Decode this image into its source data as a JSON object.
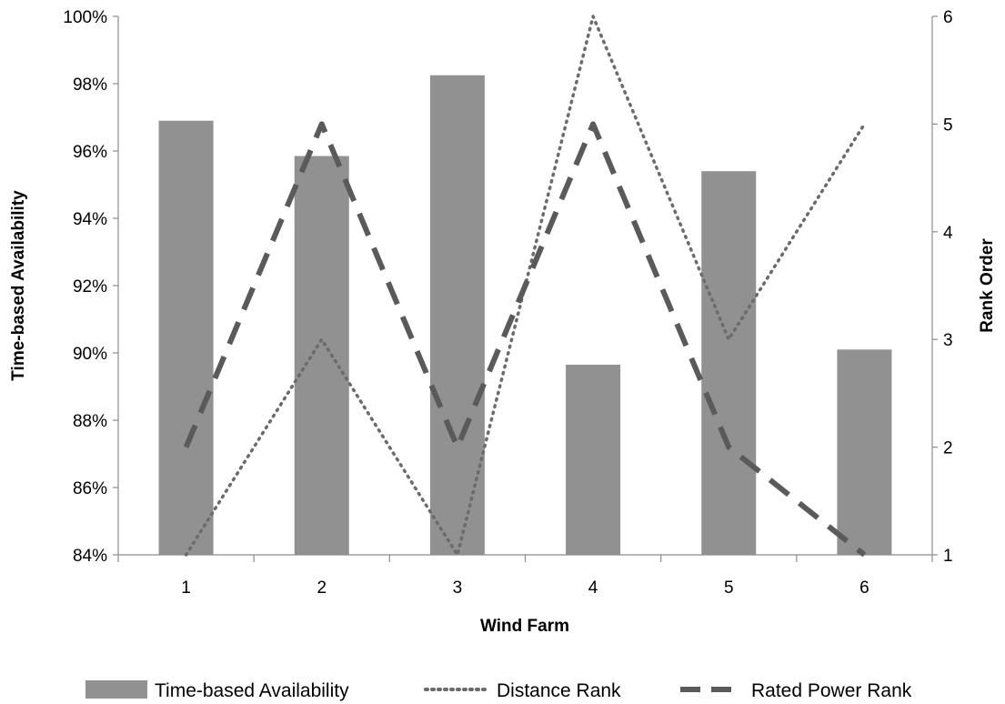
{
  "chart_data": {
    "type": "bar",
    "categories": [
      "1",
      "2",
      "3",
      "4",
      "5",
      "6"
    ],
    "x_tick_labels": [
      "1",
      "2",
      "3",
      "4",
      "5",
      "6"
    ],
    "xlabel": "Wind Farm",
    "ylabel": "Time-based Availability",
    "y2label": "Rank Order",
    "ylim": [
      0.84,
      1.0
    ],
    "y_ticks": [
      0.84,
      0.86,
      0.88,
      0.9,
      0.92,
      0.94,
      0.96,
      0.98,
      1.0
    ],
    "y_tick_labels": [
      "84%",
      "86%",
      "88%",
      "90%",
      "92%",
      "94%",
      "96%",
      "98%",
      "100%"
    ],
    "y2lim": [
      1,
      6
    ],
    "y2_ticks": [
      1,
      2,
      3,
      4,
      5,
      6
    ],
    "y2_tick_labels": [
      "1",
      "2",
      "3",
      "4",
      "5",
      "6"
    ],
    "grid": false,
    "legend_position": "bottom",
    "series": [
      {
        "name": "Time-based Availability",
        "kind": "bar",
        "axis": "left",
        "color": "#919191",
        "values": [
          0.969,
          0.9585,
          0.9825,
          0.8965,
          0.954,
          0.901
        ]
      },
      {
        "name": "Distance Rank",
        "kind": "line",
        "style": "dotted",
        "axis": "right",
        "color": "#6b6b6b",
        "values": [
          1,
          3,
          1,
          6,
          3,
          5
        ]
      },
      {
        "name": "Rated Power Rank",
        "kind": "line",
        "style": "dashed",
        "axis": "right",
        "color": "#5a5a5a",
        "values": [
          2,
          5,
          2,
          5,
          2,
          1
        ]
      }
    ]
  }
}
